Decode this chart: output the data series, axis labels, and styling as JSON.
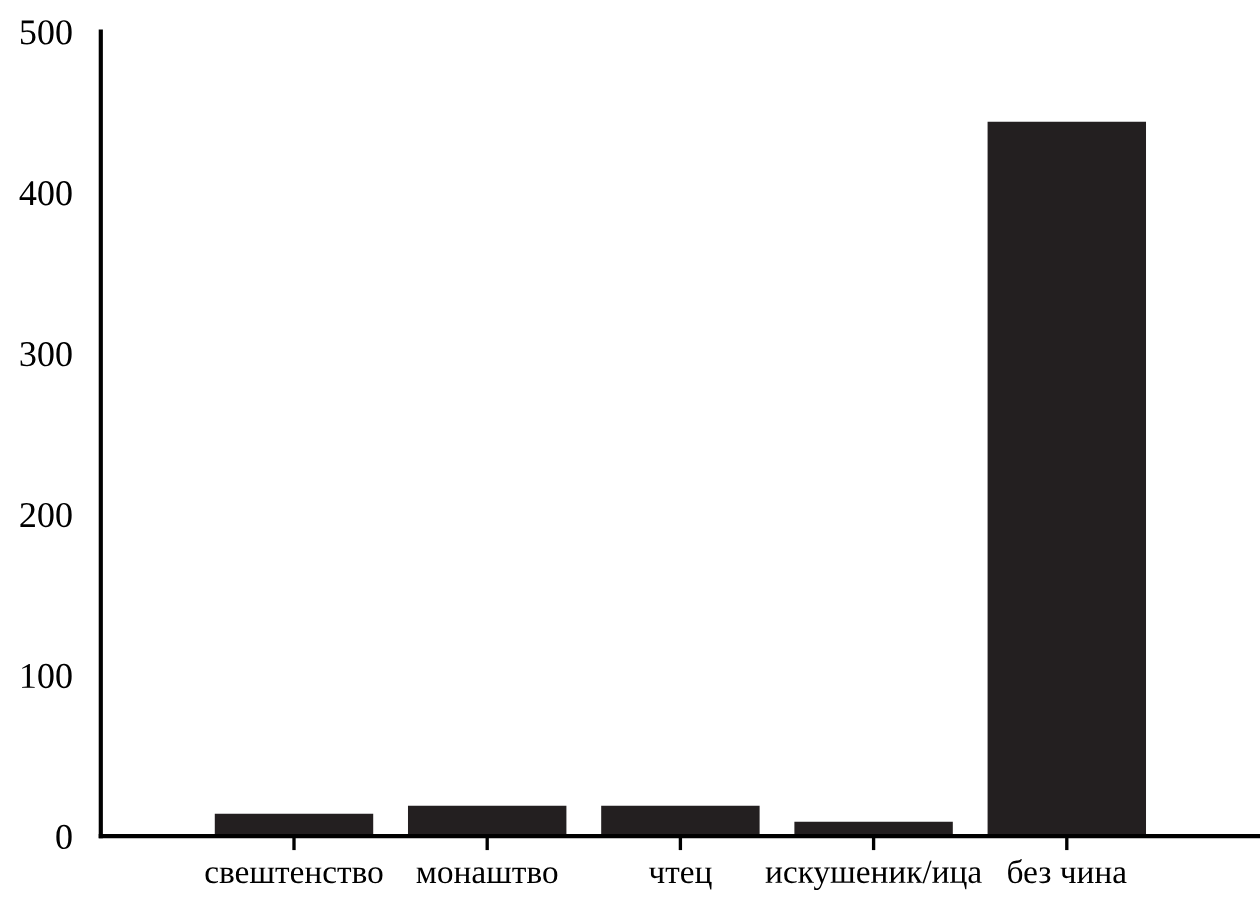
{
  "chart_data": {
    "type": "bar",
    "categories": [
      "свештенство",
      "монаштво",
      "чтец",
      "искушеник/ица",
      "без чина"
    ],
    "values": [
      14,
      19,
      19,
      9,
      444
    ],
    "color": "#231f20",
    "ylim": [
      0,
      500
    ],
    "yticks": [
      0,
      100,
      200,
      300,
      400,
      500
    ],
    "grid": false
  }
}
